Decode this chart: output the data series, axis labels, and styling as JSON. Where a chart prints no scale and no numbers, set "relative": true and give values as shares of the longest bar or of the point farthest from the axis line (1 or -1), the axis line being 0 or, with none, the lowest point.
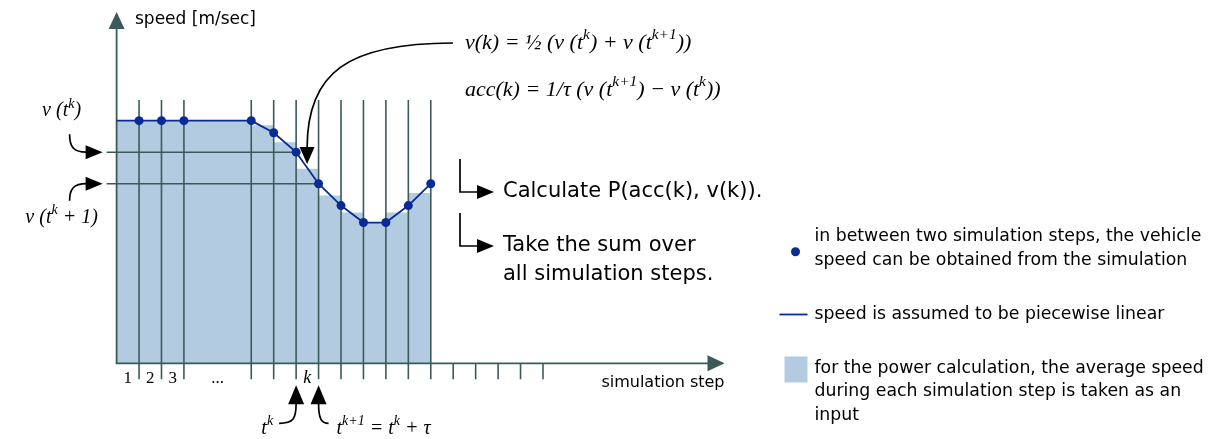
{
  "chart_data": {
    "type": "bar",
    "relative": true,
    "xlabel": "simulation step",
    "xlim": [
      0,
      27
    ],
    "xticks": [
      {
        "value": 0.5,
        "label": "1"
      },
      {
        "value": 1,
        "label": null
      },
      {
        "value": 1.5,
        "label": "2"
      },
      {
        "value": 2,
        "label": null
      },
      {
        "value": 2.5,
        "label": "3"
      },
      {
        "value": 3,
        "label": null
      },
      {
        "value": 4.5,
        "label": "..."
      },
      {
        "value": 6,
        "label": null
      },
      {
        "value": 7,
        "label": null
      },
      {
        "value": 8,
        "label": null
      },
      {
        "value": 8.5,
        "label": "k"
      },
      {
        "value": 9,
        "label": null
      },
      {
        "value": 10,
        "label": null
      },
      {
        "value": 11,
        "label": null
      },
      {
        "value": 12,
        "label": null
      },
      {
        "value": 13,
        "label": null
      },
      {
        "value": 14,
        "label": null
      },
      {
        "value": 15,
        "label": null
      },
      {
        "value": 16,
        "label": null
      },
      {
        "value": 17,
        "label": null
      },
      {
        "value": 18,
        "label": null
      },
      {
        "value": 19,
        "label": null
      }
    ],
    "grid": "x",
    "legend": "right",
    "series": [
      {
        "type": "scatter",
        "name": "in between two simulation steps, the vehicle speed can be obtained from the simulation",
        "color": "#0a2a96",
        "marker": "circle",
        "x": [
          1,
          2,
          3,
          6,
          7,
          8,
          9,
          10,
          11,
          12,
          13,
          14
        ],
        "values": [
          1,
          1,
          1,
          1,
          0.95,
          0.87,
          0.74,
          0.65,
          0.58,
          0.58,
          0.65,
          0.74
        ]
      },
      {
        "type": "line",
        "name": "speed is assumed to be piecewise linear",
        "color": "#0a2a96",
        "x": [
          0,
          1,
          2,
          3,
          6,
          7,
          8,
          9,
          10,
          11,
          12,
          13,
          14
        ],
        "values": [
          1,
          1,
          1,
          1,
          1,
          0.95,
          0.87,
          0.74,
          0.65,
          0.58,
          0.58,
          0.65,
          0.74
        ]
      },
      {
        "name": "for the power calculation, the average speed during each simulation step is taken as an input",
        "color": "#b3cbe0",
        "x": [
          0.5,
          1.5,
          2.5,
          3.5,
          4.5,
          5.5,
          6.5,
          7.5,
          8.5,
          9.5,
          10.5,
          11.5,
          12.5,
          13.5
        ],
        "values": [
          1,
          1,
          1,
          1,
          1,
          1,
          0.98,
          0.91,
          0.8,
          0.69,
          0.62,
          0.58,
          0.62,
          0.7
        ]
      }
    ],
    "ref_lines": [
      {
        "axis": "y",
        "value": 0.87,
        "label": "v (t$^{k}$)",
        "color": "#3b5b5b"
      },
      {
        "axis": "y",
        "value": 0.74,
        "label": "v (t$^{k}$ + 1)",
        "color": "#3b5b5b"
      }
    ],
    "annotations": [
      "v(k) = ½ (v (t$^{k}$) + v (t$^{k+1}$))",
      "acc(k) = 1/τ (v (t$^{k+1}$) − v (t$^{k}$))",
      "Calculate P(acc(k), v(k)).",
      "Take the sum over all simulation steps.",
      {
        "text": "t$^{k}$",
        "x": 8,
        "y": 0
      },
      {
        "text": "t$^{k+1}$ = t$^{k}$ + τ",
        "x": 9,
        "y": 0
      },
      "speed [m/sec]"
    ]
  }
}
